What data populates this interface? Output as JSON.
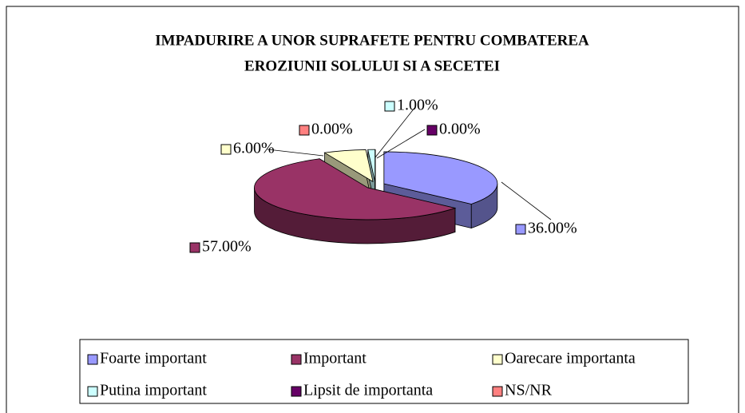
{
  "chart_data": {
    "type": "pie3d",
    "title": [
      "IMPADURIRE A UNOR SUPRAFETE PENTRU COMBATEREA",
      "EROZIUNII SOLULUI SI A SECETEI"
    ],
    "categories": [
      "Foarte important",
      "Important",
      "Oarecare importanta",
      "Putina important",
      "Lipsit de importanta",
      "NS/NR"
    ],
    "values": [
      36,
      57,
      6,
      1,
      0,
      0
    ],
    "value_labels": [
      "36.00%",
      "57.00%",
      "6.00%",
      "1.00%",
      "0.00%",
      "0.00%"
    ],
    "colors": [
      "#9999ff",
      "#993366",
      "#ffffcc",
      "#ccffff",
      "#660066",
      "#ff8080"
    ],
    "legend": "bottom"
  }
}
